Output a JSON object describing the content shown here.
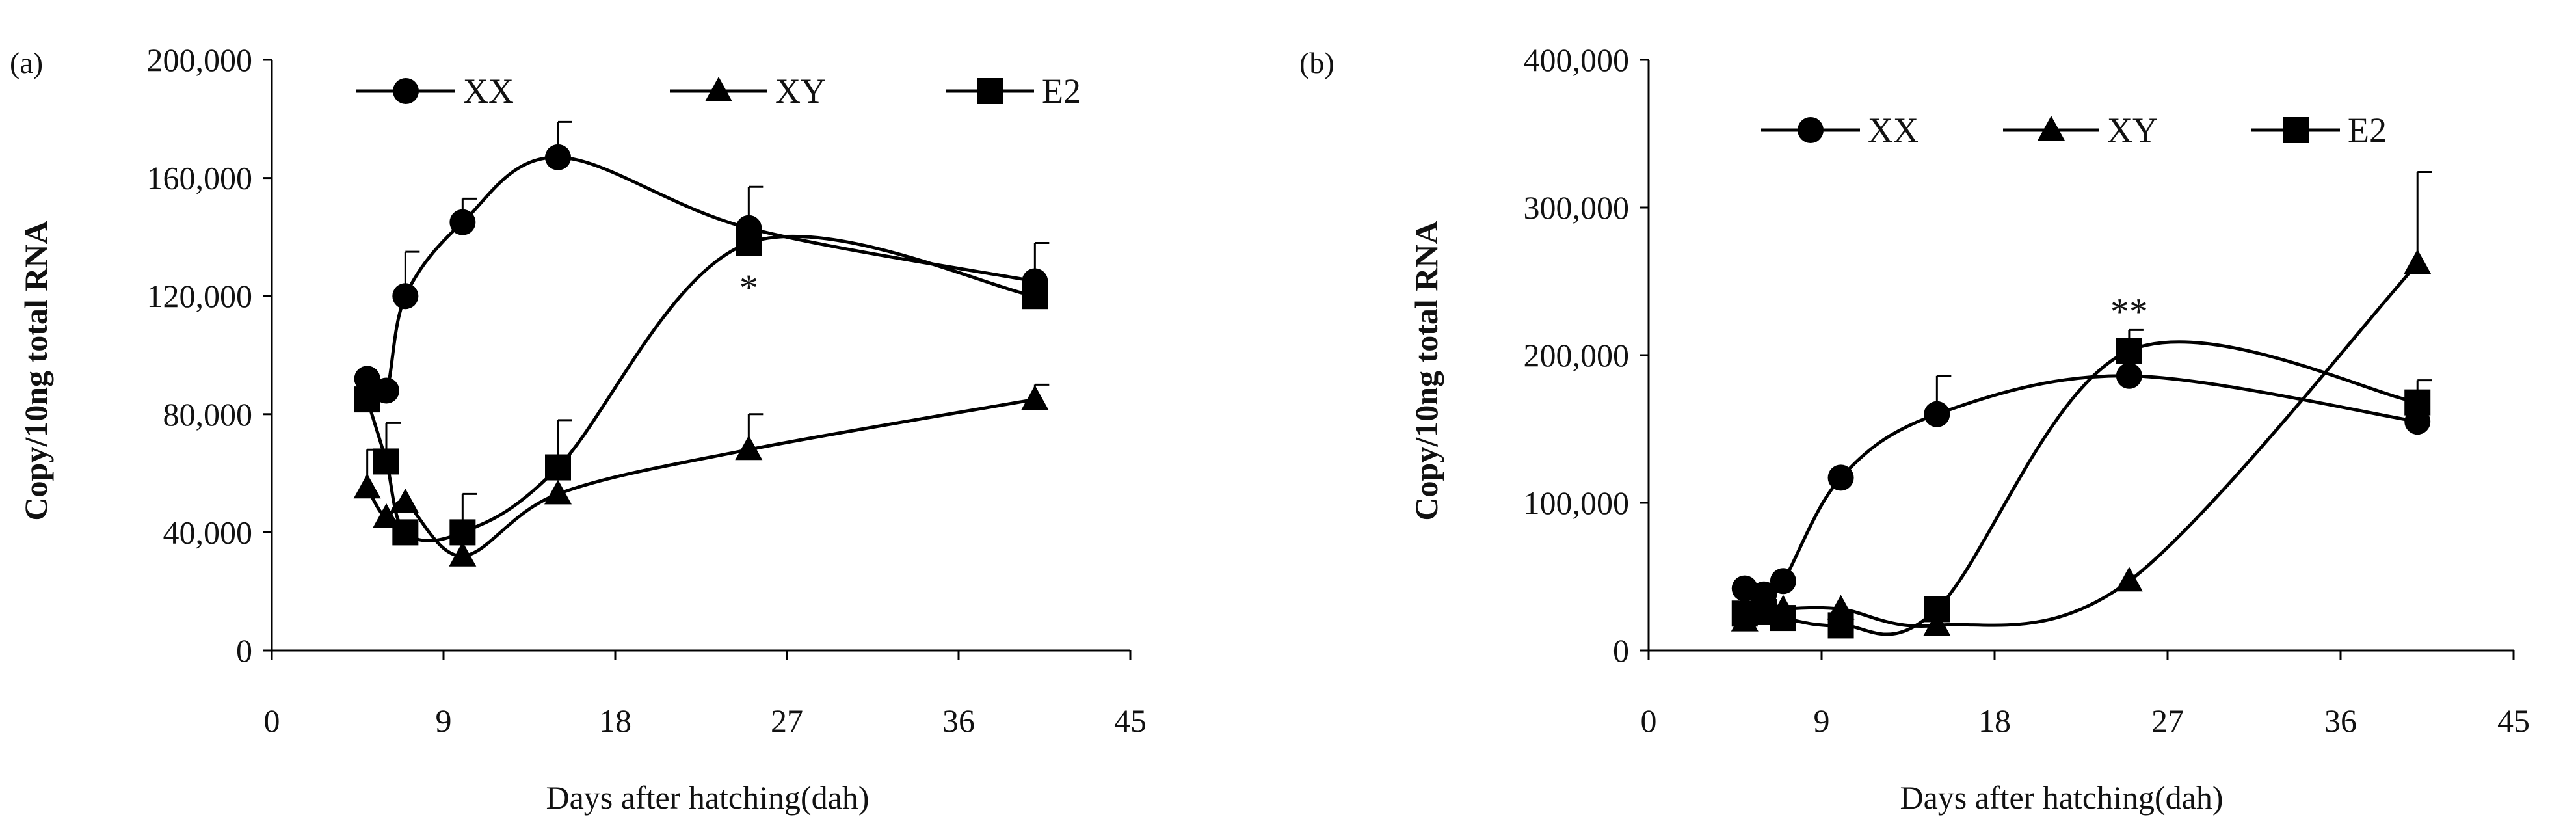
{
  "chart_data": [
    {
      "type": "line",
      "panel_label": "(a)",
      "xlabel": "Days after hatching(dah)",
      "ylabel": "Copy/10ng total RNA",
      "xlim": [
        0,
        45
      ],
      "ylim": [
        0,
        200000
      ],
      "x_ticks": [
        0,
        9,
        18,
        27,
        36,
        45
      ],
      "x_tick_labels": [
        "0",
        "9",
        "18",
        "27",
        "36",
        "45"
      ],
      "y_ticks": [
        0,
        40000,
        80000,
        120000,
        160000,
        200000
      ],
      "y_tick_labels": [
        "0",
        "40,000",
        "80,000",
        "120,000",
        "160,000",
        "200,000"
      ],
      "grid": false,
      "legend": "top",
      "series": [
        {
          "name": "XX",
          "marker": "circle",
          "x": [
            5,
            6,
            7,
            10,
            15,
            25,
            40
          ],
          "y": [
            92000,
            88000,
            120000,
            145000,
            167000,
            143000,
            125000
          ],
          "err": [
            0,
            0,
            15000,
            8000,
            12000,
            14000,
            13000
          ]
        },
        {
          "name": "XY",
          "marker": "triangle",
          "x": [
            5,
            6,
            7,
            10,
            15,
            25,
            40
          ],
          "y": [
            55000,
            45000,
            50000,
            32000,
            53000,
            68000,
            85000
          ],
          "err": [
            13000,
            0,
            0,
            0,
            0,
            12000,
            5000
          ]
        },
        {
          "name": "E2",
          "marker": "square",
          "x": [
            5,
            6,
            7,
            10,
            15,
            25,
            40
          ],
          "y": [
            85000,
            64000,
            40000,
            40000,
            62000,
            138000,
            120000
          ],
          "err": [
            0,
            13000,
            0,
            13000,
            16000,
            0,
            0
          ]
        }
      ],
      "annotations": [
        {
          "text": "*",
          "x": 25,
          "y": 122000
        }
      ]
    },
    {
      "type": "line",
      "panel_label": "(b)",
      "xlabel": "Days after hatching(dah)",
      "ylabel": "Copy/10ng total RNA",
      "xlim": [
        0,
        45
      ],
      "ylim": [
        0,
        400000
      ],
      "x_ticks": [
        0,
        9,
        18,
        27,
        36,
        45
      ],
      "x_tick_labels": [
        "0",
        "9",
        "18",
        "27",
        "36",
        "45"
      ],
      "y_ticks": [
        0,
        100000,
        200000,
        300000,
        400000
      ],
      "y_tick_labels": [
        "0",
        "100,000",
        "200,000",
        "300,000",
        "400,000"
      ],
      "grid": false,
      "legend": "top",
      "series": [
        {
          "name": "XX",
          "marker": "circle",
          "x": [
            5,
            6,
            7,
            10,
            15,
            25,
            40
          ],
          "y": [
            42000,
            38000,
            47000,
            117000,
            160000,
            186000,
            155000
          ],
          "err": [
            0,
            0,
            0,
            0,
            26000,
            0,
            0
          ]
        },
        {
          "name": "XY",
          "marker": "triangle",
          "x": [
            5,
            6,
            7,
            10,
            15,
            25,
            40
          ],
          "y": [
            20000,
            26000,
            28000,
            28000,
            17000,
            47000,
            262000
          ],
          "err": [
            0,
            0,
            0,
            0,
            0,
            0,
            62000
          ]
        },
        {
          "name": "E2",
          "marker": "square",
          "x": [
            5,
            6,
            7,
            10,
            15,
            25,
            40
          ],
          "y": [
            25000,
            26000,
            22000,
            17000,
            28000,
            203000,
            168000
          ],
          "err": [
            0,
            0,
            0,
            0,
            0,
            14000,
            15000
          ]
        }
      ],
      "annotations": [
        {
          "text": "**",
          "x": 25,
          "y": 228000
        }
      ]
    }
  ]
}
